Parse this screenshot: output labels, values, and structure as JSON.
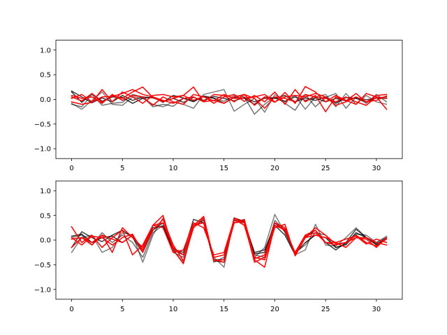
{
  "chart_data": [
    {
      "type": "line",
      "x": [
        0,
        1,
        2,
        3,
        4,
        5,
        6,
        7,
        8,
        9,
        10,
        11,
        12,
        13,
        14,
        15,
        16,
        17,
        18,
        19,
        20,
        21,
        22,
        23,
        24,
        25,
        26,
        27,
        28,
        29,
        30,
        31
      ],
      "xlim": [
        -1.55,
        32.55
      ],
      "ylim": [
        -1.2,
        1.2
      ],
      "xticks": [
        "0",
        "5",
        "10",
        "15",
        "20",
        "25",
        "30"
      ],
      "yticks": [
        "−1.0",
        "−0.5",
        "0.0",
        "0.5",
        "1.0"
      ],
      "colors": {
        "gray": "#000000",
        "red": "#ff0000"
      },
      "series": [
        {
          "color": "gray",
          "opacity": 0.75,
          "values": [
            0.17,
            0.05,
            -0.07,
            0.03,
            -0.05,
            0.08,
            -0.02,
            0.05,
            0.03,
            -0.04,
            0.02,
            -0.06,
            0.04,
            -0.02,
            0.06,
            0.02,
            -0.03,
            0.04,
            -0.05,
            0.02,
            0.03,
            -0.04,
            0.05,
            -0.02,
            0.03,
            -0.05,
            0.02,
            -0.03,
            0.04,
            -0.01,
            0.03,
            0.05
          ]
        },
        {
          "color": "gray",
          "opacity": 0.5,
          "values": [
            -0.08,
            -0.2,
            -0.02,
            0.15,
            -0.1,
            -0.12,
            0.05,
            0.02,
            -0.1,
            -0.15,
            -0.05,
            -0.1,
            -0.18,
            0.1,
            0.15,
            0.2,
            -0.24,
            -0.1,
            0.02,
            -0.26,
            0.1,
            -0.05,
            0.08,
            -0.2,
            0.05,
            0.1,
            -0.15,
            0.12,
            -0.1,
            0.08,
            -0.05,
            -0.1
          ]
        },
        {
          "color": "gray",
          "opacity": 0.55,
          "values": [
            -0.1,
            -0.15,
            0.1,
            -0.12,
            -0.08,
            -0.06,
            0.1,
            0.05,
            -0.15,
            -0.1,
            -0.14,
            0.02,
            -0.05,
            0.07,
            0.03,
            -0.04,
            0.08,
            0.05,
            -0.3,
            -0.1,
            0.05,
            -0.08,
            -0.22,
            0.1,
            -0.15,
            0.04,
            0.12,
            -0.18,
            0.05,
            -0.08,
            0.1,
            -0.05
          ]
        },
        {
          "color": "gray",
          "opacity": 0.8,
          "values": [
            0.15,
            -0.06,
            0.12,
            -0.04,
            0.05,
            0.04,
            -0.08,
            0.02,
            0.05,
            -0.06,
            0.08,
            0.03,
            -0.04,
            0.06,
            0.02,
            -0.08,
            0.04,
            0.02,
            -0.1,
            0.05,
            0.02,
            0.08,
            -0.05,
            0.03,
            -0.02,
            0.05,
            -0.08,
            0.04,
            0.02,
            -0.05,
            0.03,
            0.02
          ]
        },
        {
          "color": "red",
          "opacity": 1,
          "values": [
            0.05,
            -0.03,
            0.12,
            -0.06,
            0.08,
            0.02,
            0.15,
            0.25,
            0.04,
            -0.05,
            0.02,
            0.08,
            0.25,
            -0.05,
            0.1,
            0.08,
            -0.05,
            0.1,
            -0.12,
            0.05,
            -0.06,
            0.14,
            -0.08,
            0.26,
            0.15,
            -0.05,
            0.08,
            -0.02,
            -0.1,
            0.12,
            0.05,
            -0.2
          ]
        },
        {
          "color": "red",
          "opacity": 1,
          "values": [
            -0.05,
            -0.1,
            -0.06,
            0.2,
            -0.05,
            0.15,
            0.05,
            -0.08,
            0.08,
            0.1,
            0.05,
            0.08,
            -0.02,
            0.06,
            -0.08,
            0.05,
            0.1,
            -0.04,
            0.08,
            -0.05,
            0.15,
            -0.1,
            0.2,
            -0.05,
            0.08,
            -0.25,
            0.05,
            -0.03,
            0.12,
            -0.06,
            0.08,
            0.1
          ]
        },
        {
          "color": "red",
          "opacity": 1,
          "values": [
            0.08,
            0.02,
            0.05,
            -0.08,
            0.1,
            -0.02,
            0.08,
            0.05,
            -0.12,
            0.05,
            -0.05,
            -0.1,
            0.1,
            0.05,
            -0.03,
            0.1,
            0.02,
            0.03,
            0.05,
            0.1,
            -0.05,
            0.05,
            0.08,
            0.05,
            0.12,
            0.05,
            -0.12,
            -0.05,
            0.05,
            -0.05,
            -0.02,
            0.07
          ]
        },
        {
          "color": "red",
          "opacity": 1,
          "values": [
            0.02,
            0.1,
            -0.05,
            0.05,
            0.06,
            0.12,
            0.2,
            0.1,
            0.05,
            -0.02,
            -0.08,
            0.02,
            0.05,
            -0.05,
            -0.02,
            -0.08,
            0.05,
            0.1,
            0.02,
            -0.18,
            0.05,
            0.02,
            -0.05,
            0.1,
            0.05,
            0.02,
            -0.05,
            0.05,
            -0.05,
            -0.12,
            0.05,
            0.02
          ]
        }
      ]
    },
    {
      "type": "line",
      "x": [
        0,
        1,
        2,
        3,
        4,
        5,
        6,
        7,
        8,
        9,
        10,
        11,
        12,
        13,
        14,
        15,
        16,
        17,
        18,
        19,
        20,
        21,
        22,
        23,
        24,
        25,
        26,
        27,
        28,
        29,
        30,
        31
      ],
      "xlim": [
        -1.55,
        32.55
      ],
      "ylim": [
        -1.2,
        1.2
      ],
      "xticks": [
        "0",
        "5",
        "10",
        "15",
        "20",
        "25",
        "30"
      ],
      "yticks": [
        "−1.0",
        "−0.5",
        "0.0",
        "0.5",
        "1.0"
      ],
      "colors": {
        "gray": "#000000",
        "red": "#ff0000"
      },
      "series": [
        {
          "color": "gray",
          "opacity": 0.75,
          "values": [
            -0.15,
            0.17,
            0.05,
            -0.03,
            0.1,
            0.2,
            0.05,
            -0.25,
            0.2,
            0.35,
            -0.18,
            -0.25,
            0.42,
            0.35,
            -0.42,
            -0.45,
            0.4,
            0.35,
            -0.25,
            -0.2,
            0.3,
            0.1,
            -0.3,
            0.05,
            0.2,
            -0.05,
            -0.2,
            -0.05,
            0.22,
            0.05,
            -0.1,
            0.05
          ]
        },
        {
          "color": "gray",
          "opacity": 0.5,
          "values": [
            -0.25,
            0.05,
            0.1,
            -0.25,
            -0.15,
            0.15,
            0.1,
            -0.45,
            0.1,
            0.45,
            -0.2,
            -0.45,
            0.3,
            0.4,
            -0.35,
            -0.55,
            0.45,
            0.3,
            -0.35,
            -0.15,
            0.52,
            0.15,
            -0.3,
            -0.2,
            0.32,
            -0.1,
            -0.12,
            0.05,
            0.25,
            0.05,
            -0.05,
            0.08
          ]
        },
        {
          "color": "gray",
          "opacity": 0.55,
          "values": [
            0.05,
            0.1,
            -0.1,
            0.15,
            -0.05,
            0.1,
            -0.05,
            -0.35,
            0.15,
            0.3,
            -0.25,
            -0.35,
            0.25,
            0.42,
            -0.45,
            -0.35,
            0.35,
            0.4,
            -0.3,
            -0.35,
            0.4,
            0.2,
            -0.25,
            -0.1,
            0.15,
            0.1,
            -0.15,
            -0.1,
            0.12,
            0.1,
            -0.05,
            0.05
          ]
        },
        {
          "color": "gray",
          "opacity": 0.8,
          "values": [
            0.08,
            0.12,
            -0.05,
            0.05,
            0.08,
            -0.05,
            0.1,
            -0.2,
            0.25,
            0.28,
            -0.2,
            -0.3,
            0.3,
            0.35,
            -0.4,
            -0.4,
            0.45,
            0.38,
            -0.28,
            -0.25,
            0.35,
            0.18,
            -0.28,
            -0.05,
            0.1,
            0.05,
            -0.15,
            -0.08,
            0.15,
            0.05,
            -0.08,
            0.02
          ]
        },
        {
          "color": "red",
          "opacity": 1,
          "values": [
            0.27,
            -0.05,
            0.1,
            -0.15,
            0.05,
            0.2,
            -0.3,
            -0.1,
            0.3,
            0.5,
            -0.2,
            -0.48,
            0.3,
            0.48,
            -0.4,
            -0.45,
            0.45,
            0.35,
            -0.45,
            -0.35,
            0.35,
            0.25,
            -0.3,
            0.05,
            0.25,
            0.1,
            -0.08,
            -0.05,
            0.05,
            0.02,
            -0.15,
            0.05
          ]
        },
        {
          "color": "red",
          "opacity": 1,
          "values": [
            -0.15,
            0.05,
            -0.1,
            0.1,
            -0.25,
            0.25,
            0.05,
            -0.15,
            0.3,
            0.25,
            -0.25,
            -0.2,
            0.35,
            0.25,
            -0.3,
            -0.25,
            0.42,
            0.3,
            -0.4,
            -0.55,
            0.3,
            0.22,
            -0.25,
            0.1,
            0.2,
            -0.05,
            -0.1,
            -0.05,
            0.1,
            -0.05,
            -0.12,
            0.02
          ]
        },
        {
          "color": "red",
          "opacity": 1,
          "values": [
            0.05,
            -0.1,
            0.08,
            0.05,
            -0.1,
            0.05,
            0.12,
            -0.25,
            0.3,
            0.35,
            -0.15,
            -0.3,
            0.3,
            0.35,
            -0.35,
            -0.3,
            0.35,
            0.38,
            -0.38,
            -0.3,
            0.3,
            0.2,
            -0.28,
            0.08,
            0.15,
            -0.05,
            -0.05,
            -0.15,
            0.05,
            0.05,
            -0.05,
            -0.1
          ]
        },
        {
          "color": "red",
          "opacity": 1,
          "values": [
            0.02,
            0.05,
            -0.05,
            0.1,
            0.02,
            -0.05,
            0.1,
            -0.2,
            0.2,
            0.42,
            -0.1,
            -0.42,
            0.25,
            0.45,
            -0.42,
            -0.4,
            0.35,
            0.42,
            -0.35,
            -0.4,
            0.25,
            0.32,
            -0.32,
            0.05,
            0.1,
            0.05,
            -0.05,
            0.02,
            0.08,
            -0.08,
            0.02,
            -0.05
          ]
        }
      ]
    }
  ]
}
